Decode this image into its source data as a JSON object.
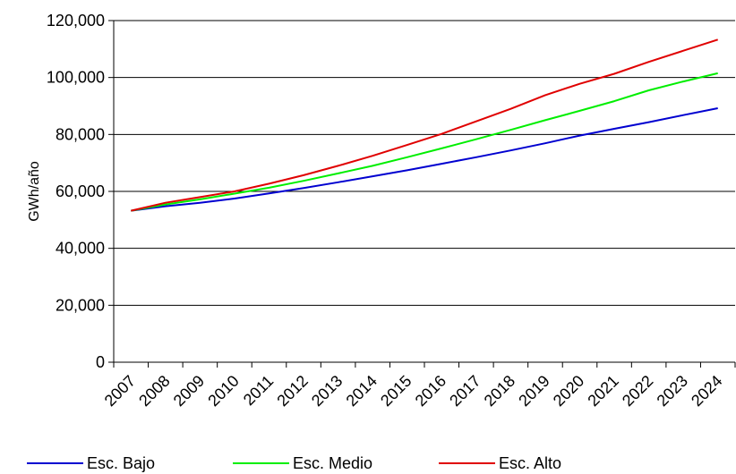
{
  "chart_data": {
    "type": "line",
    "title": "",
    "xlabel": "",
    "ylabel": "GWh/año",
    "ylim": [
      0,
      120000
    ],
    "yticks": [
      0,
      20000,
      40000,
      60000,
      80000,
      100000,
      120000
    ],
    "ytick_labels": [
      "0",
      "20,000",
      "40,000",
      "60,000",
      "80,000",
      "100,000",
      "120,000"
    ],
    "grid": "horizontal",
    "legend_position": "bottom",
    "categories": [
      "2007",
      "2008",
      "2009",
      "2010",
      "2011",
      "2012",
      "2013",
      "2014",
      "2015",
      "2016",
      "2017",
      "2018",
      "2019",
      "2020",
      "2021",
      "2022",
      "2023",
      "2024"
    ],
    "series": [
      {
        "name": "Esc. Bajo",
        "color": "#0000d0",
        "values": [
          53200,
          54800,
          56000,
          57500,
          59300,
          61200,
          63200,
          65300,
          67400,
          69700,
          72000,
          74400,
          76900,
          79600,
          82000,
          84300,
          86800,
          89200
        ]
      },
      {
        "name": "Esc. Medio",
        "color": "#00ee00",
        "values": [
          53200,
          55400,
          57200,
          59200,
          61300,
          63700,
          66300,
          69000,
          72000,
          75100,
          78300,
          81600,
          85000,
          88300,
          91700,
          95500,
          98600,
          101500
        ]
      },
      {
        "name": "Esc. Alto",
        "color": "#e00000",
        "values": [
          53200,
          56000,
          58000,
          60000,
          62700,
          65700,
          69000,
          72500,
          76300,
          80200,
          84600,
          89000,
          93800,
          97800,
          101300,
          105500,
          109400,
          113300
        ]
      }
    ]
  }
}
